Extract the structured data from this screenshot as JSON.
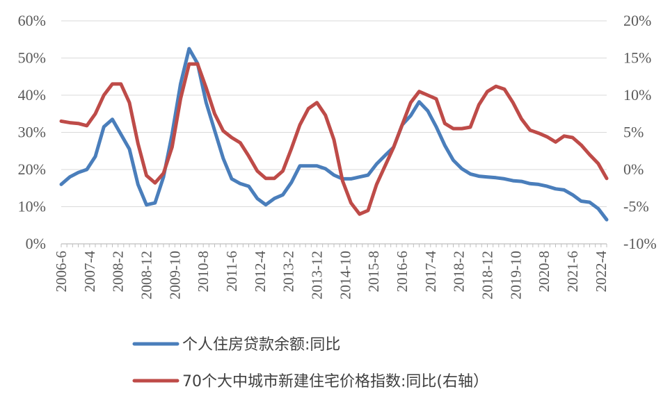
{
  "chart_data": {
    "type": "line",
    "title": "",
    "xlabel": "",
    "ylabel": "",
    "x_tick_labels": [
      "2006-6",
      "2007-4",
      "2008-2",
      "2008-12",
      "2009-10",
      "2010-8",
      "2011-6",
      "2012-4",
      "2013-2",
      "2013-12",
      "2014-10",
      "2015-8",
      "2016-6",
      "2017-4",
      "2018-2",
      "2018-12",
      "2019-10",
      "2020-8",
      "2021-6",
      "2022-4"
    ],
    "y_left": {
      "min": 0,
      "max": 60,
      "step": 10,
      "tick_labels": [
        "0%",
        "10%",
        "20%",
        "30%",
        "40%",
        "50%",
        "60%"
      ]
    },
    "y_right": {
      "min": -10,
      "max": 20,
      "step": 5,
      "tick_labels": [
        "-10%",
        "-5%",
        "0%",
        "5%",
        "10%",
        "15%",
        "20%"
      ]
    },
    "grid": true,
    "legend_position": "bottom",
    "series": [
      {
        "name": "个人住房贷款余额:同比",
        "axis": "left",
        "color": "#4a7ebb",
        "points": [
          [
            "2006-6",
            16.0
          ],
          [
            "2006-9",
            18.0
          ],
          [
            "2006-12",
            19.2
          ],
          [
            "2007-3",
            20.0
          ],
          [
            "2007-6",
            23.5
          ],
          [
            "2007-9",
            31.5
          ],
          [
            "2007-12",
            33.5
          ],
          [
            "2008-3",
            29.5
          ],
          [
            "2008-6",
            25.5
          ],
          [
            "2008-9",
            16.0
          ],
          [
            "2008-12",
            10.5
          ],
          [
            "2009-3",
            11.0
          ],
          [
            "2009-6",
            18.0
          ],
          [
            "2009-9",
            29.5
          ],
          [
            "2009-12",
            43.0
          ],
          [
            "2010-3",
            52.5
          ],
          [
            "2010-6",
            48.5
          ],
          [
            "2010-9",
            38.0
          ],
          [
            "2010-12",
            30.5
          ],
          [
            "2011-3",
            23.0
          ],
          [
            "2011-6",
            17.5
          ],
          [
            "2011-9",
            16.2
          ],
          [
            "2011-12",
            15.5
          ],
          [
            "2012-3",
            12.2
          ],
          [
            "2012-6",
            10.5
          ],
          [
            "2012-9",
            12.2
          ],
          [
            "2012-12",
            13.2
          ],
          [
            "2013-3",
            16.5
          ],
          [
            "2013-6",
            21.0
          ],
          [
            "2013-9",
            21.0
          ],
          [
            "2013-12",
            21.0
          ],
          [
            "2014-3",
            20.2
          ],
          [
            "2014-6",
            18.5
          ],
          [
            "2014-9",
            17.5
          ],
          [
            "2014-12",
            17.5
          ],
          [
            "2015-3",
            18.0
          ],
          [
            "2015-6",
            18.5
          ],
          [
            "2015-9",
            21.5
          ],
          [
            "2015-12",
            23.8
          ],
          [
            "2016-3",
            26.0
          ],
          [
            "2016-6",
            32.0
          ],
          [
            "2016-9",
            34.5
          ],
          [
            "2016-12",
            38.2
          ],
          [
            "2017-3",
            35.8
          ],
          [
            "2017-6",
            31.5
          ],
          [
            "2017-9",
            26.5
          ],
          [
            "2017-12",
            22.5
          ],
          [
            "2018-3",
            20.2
          ],
          [
            "2018-6",
            18.8
          ],
          [
            "2018-9",
            18.2
          ],
          [
            "2018-12",
            18.0
          ],
          [
            "2019-3",
            17.8
          ],
          [
            "2019-6",
            17.5
          ],
          [
            "2019-9",
            17.0
          ],
          [
            "2019-12",
            16.8
          ],
          [
            "2020-3",
            16.2
          ],
          [
            "2020-6",
            16.0
          ],
          [
            "2020-9",
            15.5
          ],
          [
            "2020-12",
            14.8
          ],
          [
            "2021-3",
            14.5
          ],
          [
            "2021-6",
            13.2
          ],
          [
            "2021-9",
            11.5
          ],
          [
            "2021-12",
            11.2
          ],
          [
            "2022-3",
            9.5
          ],
          [
            "2022-6",
            6.5
          ]
        ]
      },
      {
        "name": "70个大中城市新建住宅价格指数:同比(右轴）",
        "axis": "right",
        "color": "#be4b48",
        "points": [
          [
            "2006-6",
            6.5
          ],
          [
            "2006-9",
            6.3
          ],
          [
            "2006-12",
            6.2
          ],
          [
            "2007-3",
            5.9
          ],
          [
            "2007-6",
            7.5
          ],
          [
            "2007-9",
            10.0
          ],
          [
            "2007-12",
            11.5
          ],
          [
            "2008-3",
            11.5
          ],
          [
            "2008-6",
            9.0
          ],
          [
            "2008-9",
            3.5
          ],
          [
            "2008-12",
            -0.8
          ],
          [
            "2009-3",
            -1.8
          ],
          [
            "2009-6",
            -0.5
          ],
          [
            "2009-9",
            3.0
          ],
          [
            "2009-12",
            9.5
          ],
          [
            "2010-3",
            14.2
          ],
          [
            "2010-6",
            14.2
          ],
          [
            "2010-9",
            11.0
          ],
          [
            "2010-12",
            7.5
          ],
          [
            "2011-3",
            5.2
          ],
          [
            "2011-6",
            4.3
          ],
          [
            "2011-9",
            3.6
          ],
          [
            "2011-12",
            1.8
          ],
          [
            "2012-3",
            -0.2
          ],
          [
            "2012-6",
            -1.2
          ],
          [
            "2012-9",
            -1.2
          ],
          [
            "2012-12",
            -0.2
          ],
          [
            "2013-3",
            2.8
          ],
          [
            "2013-6",
            6.0
          ],
          [
            "2013-9",
            8.2
          ],
          [
            "2013-12",
            9.0
          ],
          [
            "2014-3",
            7.3
          ],
          [
            "2014-6",
            4.0
          ],
          [
            "2014-9",
            -1.5
          ],
          [
            "2014-12",
            -4.5
          ],
          [
            "2015-3",
            -6.0
          ],
          [
            "2015-6",
            -5.5
          ],
          [
            "2015-9",
            -2.0
          ],
          [
            "2015-12",
            0.5
          ],
          [
            "2016-3",
            3.0
          ],
          [
            "2016-6",
            6.0
          ],
          [
            "2016-9",
            9.0
          ],
          [
            "2016-12",
            10.5
          ],
          [
            "2017-3",
            10.0
          ],
          [
            "2017-6",
            9.5
          ],
          [
            "2017-9",
            6.2
          ],
          [
            "2017-12",
            5.5
          ],
          [
            "2018-3",
            5.5
          ],
          [
            "2018-6",
            5.7
          ],
          [
            "2018-9",
            8.7
          ],
          [
            "2018-12",
            10.5
          ],
          [
            "2019-3",
            11.2
          ],
          [
            "2019-6",
            10.8
          ],
          [
            "2019-9",
            9.0
          ],
          [
            "2019-12",
            6.8
          ],
          [
            "2020-3",
            5.3
          ],
          [
            "2020-6",
            4.9
          ],
          [
            "2020-9",
            4.4
          ],
          [
            "2020-12",
            3.7
          ],
          [
            "2021-3",
            4.5
          ],
          [
            "2021-6",
            4.3
          ],
          [
            "2021-9",
            3.3
          ],
          [
            "2021-12",
            2.0
          ],
          [
            "2022-3",
            0.8
          ],
          [
            "2022-6",
            -1.2
          ]
        ]
      }
    ]
  }
}
